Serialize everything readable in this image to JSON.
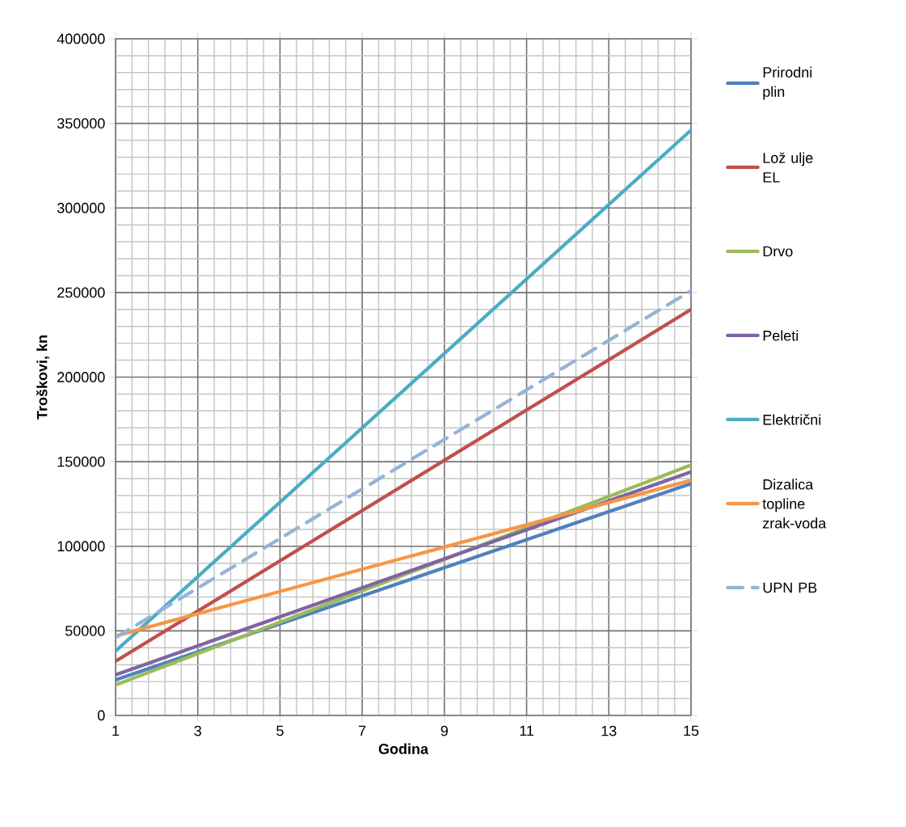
{
  "chart_data": {
    "type": "line",
    "xlabel": "Godina",
    "ylabel": "Troškovi, kn",
    "xlim": [
      1,
      15
    ],
    "xticks": [
      1,
      3,
      5,
      7,
      9,
      11,
      13,
      15
    ],
    "ylim": [
      0,
      400000
    ],
    "yticks": [
      0,
      50000,
      100000,
      150000,
      200000,
      250000,
      300000,
      350000,
      400000
    ],
    "grid": true,
    "legend": "right",
    "x": [
      1,
      15
    ],
    "series": [
      {
        "name": "Prirodni plin",
        "color": "#4f81bd",
        "values": [
          21000,
          137000
        ]
      },
      {
        "name": "Lož ulje EL",
        "color": "#c0504d",
        "values": [
          32000,
          240000
        ]
      },
      {
        "name": "Drvo",
        "color": "#9bbb59",
        "values": [
          18000,
          148000
        ]
      },
      {
        "name": "Peleti",
        "color": "#8064a2",
        "values": [
          24000,
          144000
        ]
      },
      {
        "name": "Električni",
        "color": "#4bacc6",
        "values": [
          38000,
          346000
        ]
      },
      {
        "name": "Dizalica topline zrak-voda",
        "color": "#f79646",
        "values": [
          47000,
          139000
        ]
      },
      {
        "name": "UPN PB",
        "color": "#95b3d7",
        "line_style": "dashed",
        "values": [
          46000,
          251000
        ]
      }
    ]
  }
}
